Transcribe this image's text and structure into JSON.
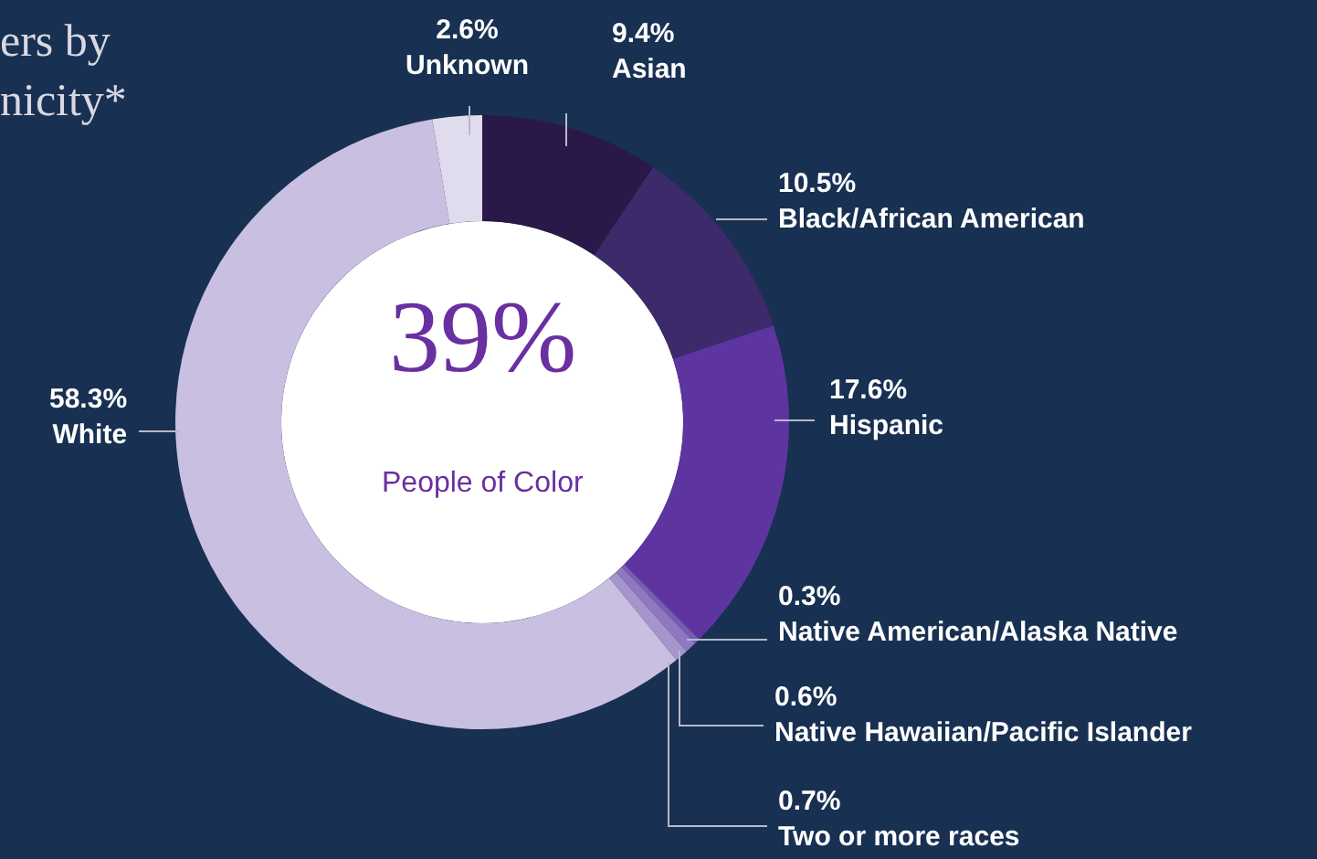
{
  "chart_data": {
    "type": "donut",
    "title": "ers by\nnicity*",
    "categories": [
      "Asian",
      "Black/African American",
      "Hispanic",
      "Native American/Alaska Native",
      "Native Hawaiian/Pacific Islander",
      "Two or more races",
      "White",
      "Unknown"
    ],
    "values": [
      9.4,
      10.5,
      17.6,
      0.3,
      0.6,
      0.7,
      58.3,
      2.6
    ],
    "value_labels": [
      "9.4%",
      "10.5%",
      "17.6%",
      "0.3%",
      "0.6%",
      "0.7%",
      "58.3%",
      "2.6%"
    ],
    "colors": [
      "#2a1848",
      "#3d2a6a",
      "#5e35a0",
      "#7a5cb0",
      "#8f78c0",
      "#a595cc",
      "#c9bfe0",
      "#e0dcee"
    ],
    "annotations": [
      "39%",
      "People of Color"
    ],
    "legend": false
  }
}
